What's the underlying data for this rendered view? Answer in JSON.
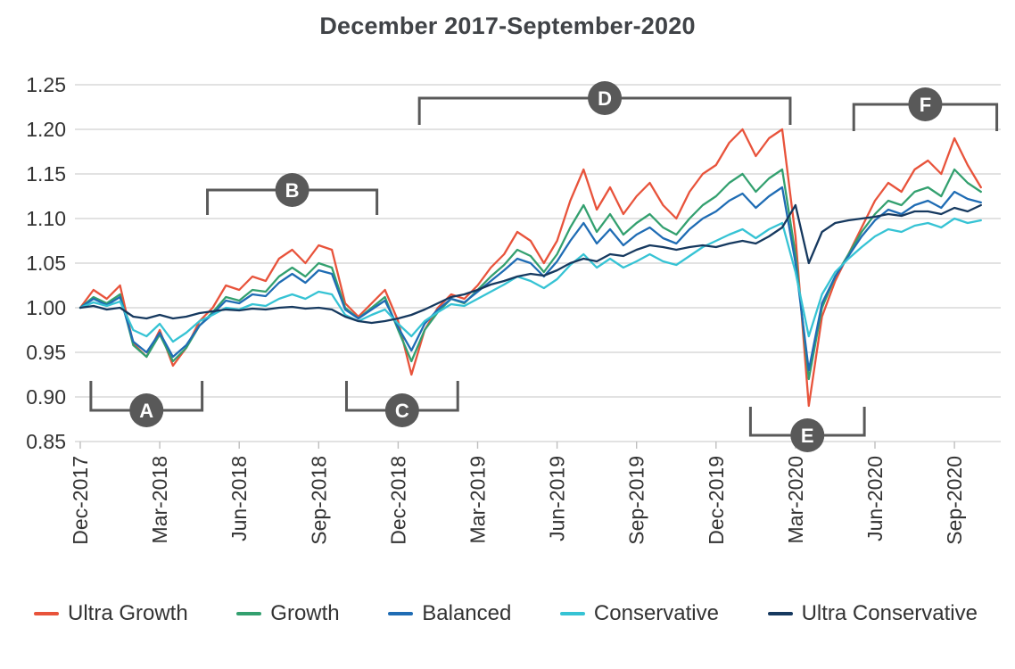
{
  "chart_data": {
    "type": "line",
    "title": "December 2017-September-2020",
    "xlabel": "",
    "ylabel": "",
    "ylim": [
      0.85,
      1.25
    ],
    "y_ticks": [
      "0.85",
      "0.90",
      "0.95",
      "1.00",
      "1.05",
      "1.10",
      "1.15",
      "1.20",
      "1.25"
    ],
    "grid": "horizontal",
    "legend_position": "bottom",
    "axis_color": "#333333",
    "grid_color": "#d9d9d9",
    "annotation_color": "#595959",
    "x_unit": "months_since_Dec-2017",
    "x_step": 0.5,
    "x_ticks": [
      {
        "label": "Dec-2017",
        "t": 0
      },
      {
        "label": "Mar-2018",
        "t": 3
      },
      {
        "label": "Jun-2018",
        "t": 6
      },
      {
        "label": "Sep-2018",
        "t": 9
      },
      {
        "label": "Dec-2018",
        "t": 12
      },
      {
        "label": "Mar-2019",
        "t": 15
      },
      {
        "label": "Jun-2019",
        "t": 18
      },
      {
        "label": "Sep-2019",
        "t": 21
      },
      {
        "label": "Dec-2019",
        "t": 24
      },
      {
        "label": "Mar-2020",
        "t": 27
      },
      {
        "label": "Jun-2020",
        "t": 30
      },
      {
        "label": "Sep-2020",
        "t": 33
      }
    ],
    "series": [
      {
        "name": "Ultra Growth",
        "color": "#e8533b",
        "values": [
          1.0,
          1.02,
          1.01,
          1.025,
          0.96,
          0.945,
          0.975,
          0.935,
          0.955,
          0.985,
          1.0,
          1.025,
          1.02,
          1.035,
          1.03,
          1.055,
          1.065,
          1.05,
          1.07,
          1.065,
          1.005,
          0.99,
          1.005,
          1.02,
          0.985,
          0.925,
          0.975,
          1.0,
          1.015,
          1.01,
          1.025,
          1.045,
          1.06,
          1.085,
          1.075,
          1.05,
          1.075,
          1.12,
          1.155,
          1.11,
          1.135,
          1.105,
          1.125,
          1.14,
          1.115,
          1.1,
          1.13,
          1.15,
          1.16,
          1.185,
          1.2,
          1.17,
          1.19,
          1.2,
          1.08,
          0.89,
          0.99,
          1.03,
          1.06,
          1.09,
          1.12,
          1.14,
          1.13,
          1.155,
          1.165,
          1.15,
          1.19,
          1.16,
          1.135
        ]
      },
      {
        "name": "Growth",
        "color": "#33a06f",
        "values": [
          1.0,
          1.012,
          1.005,
          1.015,
          0.958,
          0.945,
          0.97,
          0.94,
          0.955,
          0.98,
          0.995,
          1.012,
          1.008,
          1.02,
          1.018,
          1.035,
          1.045,
          1.035,
          1.05,
          1.045,
          1.0,
          0.988,
          1.0,
          1.012,
          0.975,
          0.94,
          0.975,
          0.995,
          1.01,
          1.005,
          1.02,
          1.035,
          1.048,
          1.065,
          1.058,
          1.04,
          1.06,
          1.09,
          1.115,
          1.085,
          1.105,
          1.082,
          1.095,
          1.105,
          1.09,
          1.082,
          1.1,
          1.115,
          1.125,
          1.14,
          1.15,
          1.13,
          1.145,
          1.155,
          1.06,
          0.92,
          1.0,
          1.035,
          1.06,
          1.085,
          1.105,
          1.12,
          1.115,
          1.13,
          1.135,
          1.125,
          1.155,
          1.14,
          1.13
        ]
      },
      {
        "name": "Balanced",
        "color": "#1f6cb4",
        "values": [
          1.0,
          1.01,
          1.003,
          1.012,
          0.962,
          0.95,
          0.972,
          0.945,
          0.958,
          0.98,
          0.993,
          1.008,
          1.005,
          1.015,
          1.013,
          1.028,
          1.038,
          1.028,
          1.042,
          1.038,
          0.998,
          0.988,
          0.998,
          1.008,
          0.978,
          0.952,
          0.982,
          0.998,
          1.01,
          1.006,
          1.018,
          1.03,
          1.042,
          1.055,
          1.05,
          1.035,
          1.052,
          1.075,
          1.095,
          1.072,
          1.088,
          1.07,
          1.082,
          1.09,
          1.078,
          1.072,
          1.088,
          1.1,
          1.108,
          1.12,
          1.128,
          1.112,
          1.125,
          1.135,
          1.05,
          0.93,
          1.005,
          1.035,
          1.058,
          1.08,
          1.098,
          1.11,
          1.105,
          1.115,
          1.12,
          1.112,
          1.13,
          1.122,
          1.118
        ]
      },
      {
        "name": "Conservative",
        "color": "#36c3d4",
        "values": [
          1.0,
          1.006,
          1.002,
          1.007,
          0.975,
          0.968,
          0.982,
          0.962,
          0.972,
          0.985,
          0.992,
          1.0,
          0.998,
          1.004,
          1.002,
          1.01,
          1.015,
          1.01,
          1.018,
          1.015,
          0.992,
          0.985,
          0.992,
          0.998,
          0.982,
          0.968,
          0.985,
          0.995,
          1.004,
          1.002,
          1.01,
          1.018,
          1.026,
          1.035,
          1.03,
          1.022,
          1.032,
          1.048,
          1.06,
          1.045,
          1.055,
          1.045,
          1.052,
          1.06,
          1.052,
          1.048,
          1.058,
          1.068,
          1.075,
          1.082,
          1.088,
          1.078,
          1.088,
          1.095,
          1.04,
          0.968,
          1.015,
          1.04,
          1.055,
          1.068,
          1.08,
          1.088,
          1.085,
          1.092,
          1.095,
          1.09,
          1.1,
          1.095,
          1.098
        ]
      },
      {
        "name": "Ultra Conservative",
        "color": "#16395f",
        "values": [
          1.0,
          1.002,
          0.998,
          1.0,
          0.99,
          0.988,
          0.992,
          0.988,
          0.99,
          0.994,
          0.996,
          0.998,
          0.997,
          0.999,
          0.998,
          1.0,
          1.001,
          0.999,
          1.0,
          0.998,
          0.99,
          0.985,
          0.983,
          0.985,
          0.988,
          0.992,
          0.998,
          1.005,
          1.012,
          1.015,
          1.02,
          1.026,
          1.03,
          1.035,
          1.038,
          1.036,
          1.042,
          1.05,
          1.055,
          1.052,
          1.06,
          1.058,
          1.065,
          1.07,
          1.068,
          1.065,
          1.068,
          1.07,
          1.068,
          1.072,
          1.075,
          1.072,
          1.08,
          1.09,
          1.115,
          1.05,
          1.085,
          1.095,
          1.098,
          1.1,
          1.102,
          1.105,
          1.103,
          1.108,
          1.108,
          1.105,
          1.112,
          1.108,
          1.115
        ]
      }
    ],
    "annotations": [
      {
        "label": "A",
        "side": "bottom",
        "t_start": 0.4,
        "t_end": 4.6,
        "line_value": 0.885,
        "arm": 0.033
      },
      {
        "label": "B",
        "side": "top",
        "t_start": 4.8,
        "t_end": 11.2,
        "line_value": 1.132,
        "arm": 0.028
      },
      {
        "label": "C",
        "side": "bottom",
        "t_start": 10.05,
        "t_end": 14.25,
        "line_value": 0.885,
        "arm": 0.033
      },
      {
        "label": "D",
        "side": "top",
        "t_start": 12.8,
        "t_end": 26.8,
        "line_value": 1.235,
        "arm": 0.03
      },
      {
        "label": "E",
        "side": "bottom",
        "t_start": 25.3,
        "t_end": 29.6,
        "line_value": 0.857,
        "arm": 0.032
      },
      {
        "label": "F",
        "side": "top",
        "t_start": 29.2,
        "t_end": 34.6,
        "line_value": 1.228,
        "arm": 0.03
      }
    ]
  }
}
